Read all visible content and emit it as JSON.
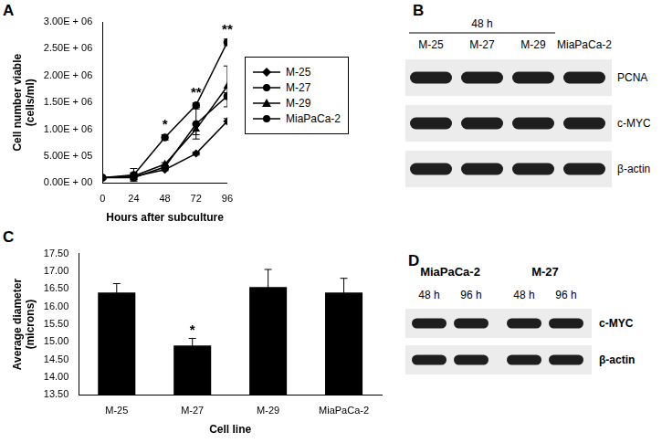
{
  "chart_data": [
    {
      "panel": "A",
      "type": "line",
      "x_label": "Hours after subculture",
      "y_label": [
        "Cell number viable",
        "(cells/ml)"
      ],
      "x": [
        0,
        24,
        48,
        72,
        96
      ],
      "xlim": [
        0,
        96
      ],
      "xticks": [
        0,
        24,
        48,
        72,
        96
      ],
      "ylim": [
        0,
        3000000
      ],
      "yticks": [
        {
          "value": 0,
          "label": "0.00E + 00"
        },
        {
          "value": 500000,
          "label": "5.00E + 05"
        },
        {
          "value": 1000000,
          "label": "1.00E + 06"
        },
        {
          "value": 1500000,
          "label": "1.50E + 06"
        },
        {
          "value": 2000000,
          "label": "2.00E + 06"
        },
        {
          "value": 2500000,
          "label": "2.50E + 06"
        },
        {
          "value": 3000000,
          "label": "3.00E + 06"
        }
      ],
      "grid": false,
      "legend": "right",
      "series": [
        {
          "name": "M-25",
          "color": "#000000",
          "marker": "diamond",
          "values": [
            100000,
            120000,
            250000,
            550000,
            1150000
          ],
          "errors": [
            0,
            60000,
            20000,
            30000,
            50000
          ]
        },
        {
          "name": "M-27",
          "color": "#000000",
          "marker": "circle",
          "values": [
            100000,
            100000,
            300000,
            1100000,
            1620000
          ],
          "errors": [
            0,
            40000,
            30000,
            280000,
            60000
          ]
        },
        {
          "name": "M-29",
          "color": "#000000",
          "marker": "triangle",
          "values": [
            100000,
            130000,
            350000,
            1000000,
            1800000
          ],
          "errors": [
            0,
            60000,
            30000,
            100000,
            380000
          ]
        },
        {
          "name": "MiaPaCa-2",
          "color": "#000000",
          "marker": "circle",
          "values": [
            100000,
            150000,
            850000,
            1450000,
            2620000
          ],
          "errors": [
            0,
            120000,
            50000,
            40000,
            60000
          ]
        }
      ],
      "annotations": [
        {
          "x": 48,
          "y": 950000,
          "text": "*"
        },
        {
          "x": 72,
          "y": 1550000,
          "text": "**"
        },
        {
          "x": 96,
          "y": 2720000,
          "text": "**"
        }
      ]
    },
    {
      "panel": "C",
      "type": "bar",
      "x_label": "Cell line",
      "y_label": [
        "Average diameter",
        "(microns)"
      ],
      "categories": [
        "M-25",
        "M-27",
        "M-29",
        "MiaPaCa-2"
      ],
      "values": [
        16.4,
        14.9,
        16.55,
        16.4
      ],
      "errors": [
        0.25,
        0.2,
        0.5,
        0.4
      ],
      "color": "#000000",
      "ylim": [
        13.5,
        17.5
      ],
      "yticks": [
        {
          "value": 13.5,
          "label": "13.50"
        },
        {
          "value": 14,
          "label": "14.00"
        },
        {
          "value": 14.5,
          "label": "14.50"
        },
        {
          "value": 15,
          "label": "15.00"
        },
        {
          "value": 15.5,
          "label": "15.50"
        },
        {
          "value": 16,
          "label": "16.00"
        },
        {
          "value": 16.5,
          "label": "16.50"
        },
        {
          "value": 17,
          "label": "17.00"
        },
        {
          "value": 17.5,
          "label": "17.50"
        }
      ],
      "grid": false,
      "annotations": [
        {
          "x": "M-27",
          "y": 15.12,
          "text": "*"
        }
      ]
    }
  ],
  "blots": [
    {
      "panel": "B",
      "header": "48 h",
      "lanes": [
        "M-25",
        "M-27",
        "M-29",
        "MiaPaCa-2"
      ],
      "rows": [
        "PCNA",
        "c-MYC",
        "β-actin"
      ]
    },
    {
      "panel": "D",
      "groups": [
        {
          "label": "MiaPaCa-2",
          "lanes": [
            "48 h",
            "96 h"
          ]
        },
        {
          "label": "M-27",
          "lanes": [
            "48 h",
            "96 h"
          ]
        }
      ],
      "rows": [
        "c-MYC",
        "β-actin"
      ]
    }
  ]
}
